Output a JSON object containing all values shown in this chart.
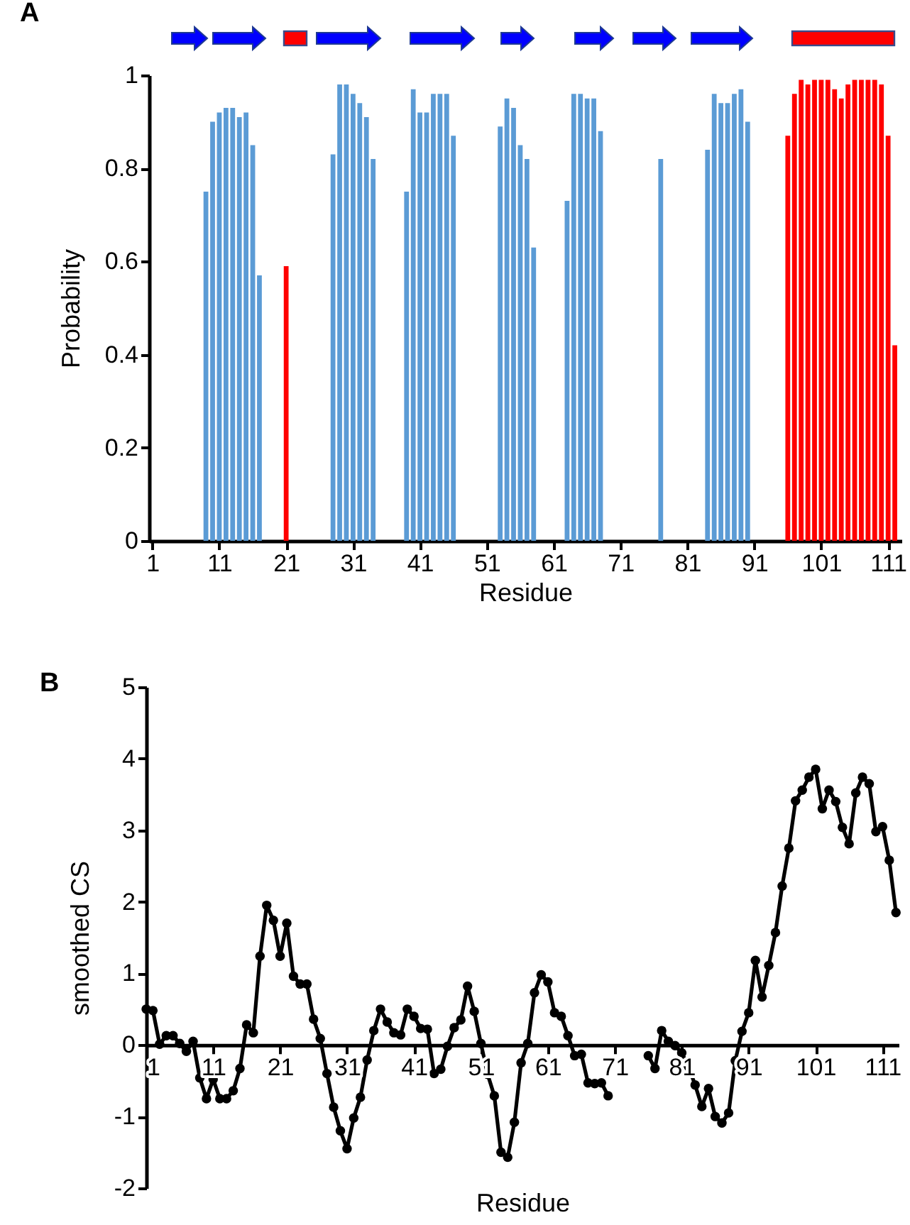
{
  "chart_data": [
    {
      "type": "bar",
      "title": "A",
      "xlabel": "Residue",
      "ylabel": "Probability",
      "xlim": [
        0.5,
        113
      ],
      "xticks": [
        1,
        11,
        21,
        31,
        41,
        51,
        61,
        71,
        81,
        91,
        101,
        111
      ],
      "ylim": [
        0,
        1
      ],
      "yticks": [
        0,
        0.2,
        0.4,
        0.6,
        0.8,
        1
      ],
      "series": [
        {
          "color": "#5b9bd5",
          "x": [
            9,
            10,
            11,
            12,
            13,
            14,
            15,
            16,
            17,
            28,
            29,
            30,
            31,
            32,
            33,
            34,
            39,
            40,
            41,
            42,
            43,
            44,
            45,
            46,
            53,
            54,
            55,
            56,
            57,
            58,
            63,
            64,
            65,
            66,
            67,
            68,
            77,
            84,
            85,
            86,
            87,
            88,
            89,
            90
          ],
          "values": [
            0.75,
            0.9,
            0.92,
            0.93,
            0.93,
            0.91,
            0.92,
            0.85,
            0.57,
            0.83,
            0.98,
            0.98,
            0.96,
            0.94,
            0.91,
            0.82,
            0.75,
            0.97,
            0.92,
            0.92,
            0.96,
            0.96,
            0.96,
            0.87,
            0.89,
            0.95,
            0.93,
            0.85,
            0.82,
            0.63,
            0.73,
            0.96,
            0.96,
            0.95,
            0.95,
            0.88,
            0.82,
            0.84,
            0.96,
            0.94,
            0.94,
            0.96,
            0.97,
            0.9
          ]
        },
        {
          "color": "#ff0000",
          "x": [
            21,
            96,
            97,
            98,
            99,
            100,
            101,
            102,
            103,
            104,
            105,
            106,
            107,
            108,
            109,
            110,
            111,
            112
          ],
          "values": [
            0.59,
            0.87,
            0.96,
            0.99,
            0.98,
            0.99,
            0.99,
            0.99,
            0.97,
            0.95,
            0.98,
            0.99,
            0.99,
            0.99,
            0.99,
            0.98,
            0.87,
            0.42
          ]
        }
      ]
    },
    {
      "type": "line",
      "title": "B",
      "xlabel": "Residue",
      "ylabel": "smoothed CS",
      "xlim": [
        1,
        113.4
      ],
      "xticks": [
        1,
        11,
        21,
        31,
        41,
        51,
        61,
        71,
        81,
        91,
        101,
        111
      ],
      "ylim": [
        -2,
        5
      ],
      "yticks": [
        -2,
        -1,
        0,
        1,
        2,
        3,
        4,
        5
      ],
      "marker": "circle",
      "line_style": "solid",
      "series": [
        {
          "color": "#000000",
          "x": [
            1,
            2,
            3,
            4,
            5,
            6,
            7,
            8,
            9,
            10,
            11,
            12,
            13,
            14,
            15,
            16,
            17,
            18,
            19,
            20,
            21,
            22,
            23,
            24,
            25,
            26,
            27,
            28,
            29,
            30,
            31,
            32,
            33,
            34,
            35,
            36,
            37,
            38,
            39,
            40,
            41,
            42,
            43,
            44,
            45,
            46,
            47,
            48,
            49,
            50,
            51,
            52,
            53,
            54,
            55,
            56,
            57,
            58,
            59,
            60,
            61,
            62,
            63,
            64,
            65,
            66,
            67,
            68,
            69,
            70,
            71,
            72,
            73,
            74,
            75,
            76,
            77,
            78,
            79,
            80,
            81,
            82,
            83,
            84,
            85,
            86,
            87,
            88,
            89,
            90,
            91,
            92,
            93,
            94,
            95,
            96,
            97,
            98,
            99,
            100,
            101,
            102,
            103,
            104,
            105,
            106,
            107,
            108,
            109,
            110,
            111,
            112,
            113
          ],
          "values": [
            0.5,
            0.48,
            0.01,
            0.13,
            0.13,
            0.02,
            -0.09,
            0.05,
            -0.46,
            -0.75,
            -0.48,
            -0.75,
            -0.75,
            -0.64,
            -0.33,
            0.28,
            0.17,
            1.24,
            1.95,
            1.74,
            1.24,
            1.7,
            0.96,
            0.85,
            0.85,
            0.36,
            0.09,
            -0.4,
            -0.87,
            -1.2,
            -1.45,
            -1.02,
            -0.73,
            -0.21,
            0.2,
            0.5,
            0.32,
            0.17,
            0.14,
            0.5,
            0.4,
            0.23,
            0.22,
            -0.4,
            -0.34,
            -0.02,
            0.24,
            0.35,
            0.82,
            0.47,
            0.02,
            -0.41,
            -0.71,
            -1.5,
            -1.57,
            -1.08,
            -0.25,
            0.02,
            0.73,
            0.98,
            0.88,
            0.45,
            0.4,
            0.13,
            -0.15,
            -0.13,
            -0.53,
            -0.54,
            -0.53,
            -0.71,
            null,
            null,
            null,
            null,
            null,
            -0.15,
            -0.33,
            0.2,
            0.05,
            -0.01,
            -0.11,
            -0.3,
            -0.56,
            -0.86,
            -0.61,
            -1.0,
            -1.09,
            -0.95,
            -0.22,
            0.19,
            0.45,
            1.18,
            0.67,
            1.11,
            1.57,
            2.22,
            2.75,
            3.41,
            3.56,
            3.74,
            3.85,
            3.3,
            3.56,
            3.4,
            3.04,
            2.81,
            3.52,
            3.74,
            3.65,
            2.98,
            3.05,
            2.58,
            1.85
          ]
        }
      ]
    }
  ]
}
